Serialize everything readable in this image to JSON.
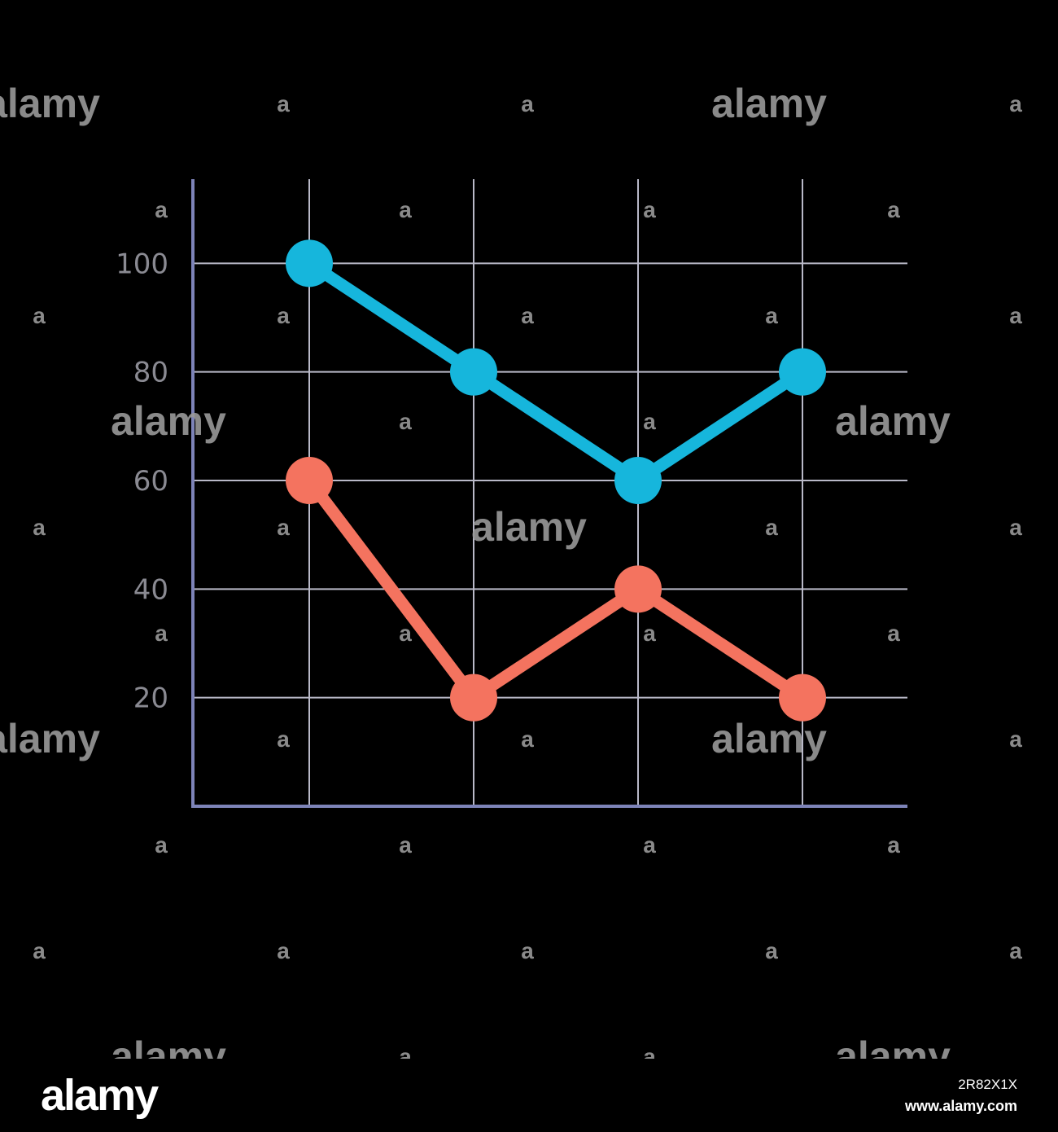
{
  "chart_data": {
    "type": "line",
    "categories": [
      "",
      "",
      "",
      ""
    ],
    "title": "",
    "xlabel": "",
    "ylabel": "",
    "ylim": [
      0,
      120
    ],
    "yticks": [
      20,
      40,
      60,
      80,
      100
    ],
    "grid": true,
    "series": [
      {
        "color": "#16b6dc",
        "values": [
          100,
          80,
          60,
          80
        ]
      },
      {
        "color": "#f4735f",
        "values": [
          60,
          20,
          40,
          20
        ]
      }
    ],
    "axis_color": "#7d83b8",
    "grid_color": "#b9b9c8"
  },
  "watermark": {
    "large_text": "alamy",
    "small_text": "a"
  },
  "footer": {
    "logo": "alamy",
    "image_id": "2R82X1X",
    "url": "www.alamy.com"
  }
}
